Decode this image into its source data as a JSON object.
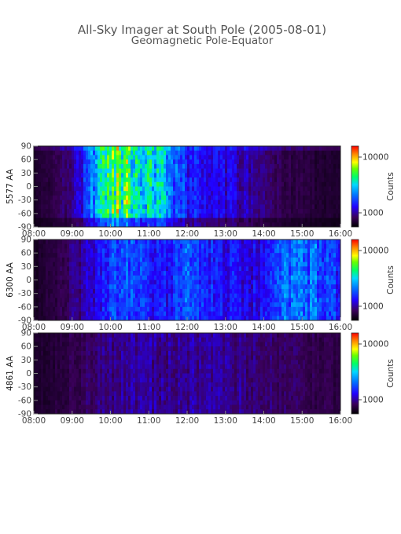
{
  "title": "All-Sky Imager at South Pole (2005-08-01)",
  "subtitle": "Geomagnetic Pole-Equator",
  "chart_data": [
    {
      "type": "heatmap",
      "ylabel": "5577 AA",
      "x_ticks": [
        "08:00",
        "09:00",
        "10:00",
        "11:00",
        "12:00",
        "13:00",
        "14:00",
        "15:00",
        "16:00"
      ],
      "y_ticks": [
        90,
        60,
        30,
        0,
        -30,
        -60,
        -90
      ],
      "xlim": [
        "08:00",
        "16:00"
      ],
      "ylim": [
        -90,
        90
      ],
      "colorbar": {
        "label": "Counts",
        "ticks": [
          "10000",
          "1000"
        ],
        "scale": "log"
      },
      "intensity_profile": {
        "times": [
          "08:00",
          "08:30",
          "09:00",
          "09:15",
          "09:30",
          "09:45",
          "10:00",
          "10:15",
          "10:30",
          "10:45",
          "11:00",
          "11:15",
          "11:30",
          "11:45",
          "12:00",
          "12:30",
          "13:00",
          "13:30",
          "14:00",
          "14:30",
          "15:00",
          "15:30",
          "16:00"
        ],
        "levels": [
          0.05,
          0.12,
          0.18,
          0.28,
          0.45,
          0.6,
          0.72,
          0.8,
          0.75,
          0.7,
          0.66,
          0.62,
          0.5,
          0.4,
          0.34,
          0.3,
          0.26,
          0.22,
          0.18,
          0.12,
          0.1,
          0.08,
          0.06
        ]
      }
    },
    {
      "type": "heatmap",
      "ylabel": "6300 AA",
      "x_ticks": [
        "08:00",
        "09:00",
        "10:00",
        "11:00",
        "12:00",
        "13:00",
        "14:00",
        "15:00",
        "16:00"
      ],
      "y_ticks": [
        90,
        60,
        30,
        0,
        -30,
        -60,
        -90
      ],
      "xlim": [
        "08:00",
        "16:00"
      ],
      "ylim": [
        -90,
        90
      ],
      "colorbar": {
        "label": "Counts",
        "ticks": [
          "10000",
          "1000"
        ],
        "scale": "log"
      },
      "intensity_profile": {
        "times": [
          "08:00",
          "08:30",
          "09:00",
          "09:30",
          "10:00",
          "10:30",
          "11:00",
          "11:30",
          "12:00",
          "12:30",
          "13:00",
          "13:30",
          "14:00",
          "14:30",
          "15:00",
          "15:30",
          "16:00"
        ],
        "levels": [
          0.05,
          0.1,
          0.16,
          0.25,
          0.36,
          0.38,
          0.34,
          0.3,
          0.4,
          0.32,
          0.3,
          0.28,
          0.3,
          0.44,
          0.46,
          0.4,
          0.36
        ]
      }
    },
    {
      "type": "heatmap",
      "ylabel": "4861 AA",
      "x_ticks": [
        "08:00",
        "09:00",
        "10:00",
        "11:00",
        "12:00",
        "13:00",
        "14:00",
        "15:00",
        "16:00"
      ],
      "y_ticks": [
        90,
        60,
        30,
        0,
        -30,
        -60,
        -90
      ],
      "xlim": [
        "08:00",
        "16:00"
      ],
      "ylim": [
        -90,
        90
      ],
      "colorbar": {
        "label": "Counts",
        "ticks": [
          "10000",
          "1000"
        ],
        "scale": "log"
      },
      "intensity_profile": {
        "times": [
          "08:00",
          "09:00",
          "10:00",
          "11:00",
          "12:00",
          "13:00",
          "14:00",
          "15:00",
          "16:00"
        ],
        "levels": [
          0.06,
          0.12,
          0.18,
          0.2,
          0.2,
          0.19,
          0.17,
          0.14,
          0.1
        ]
      }
    }
  ]
}
